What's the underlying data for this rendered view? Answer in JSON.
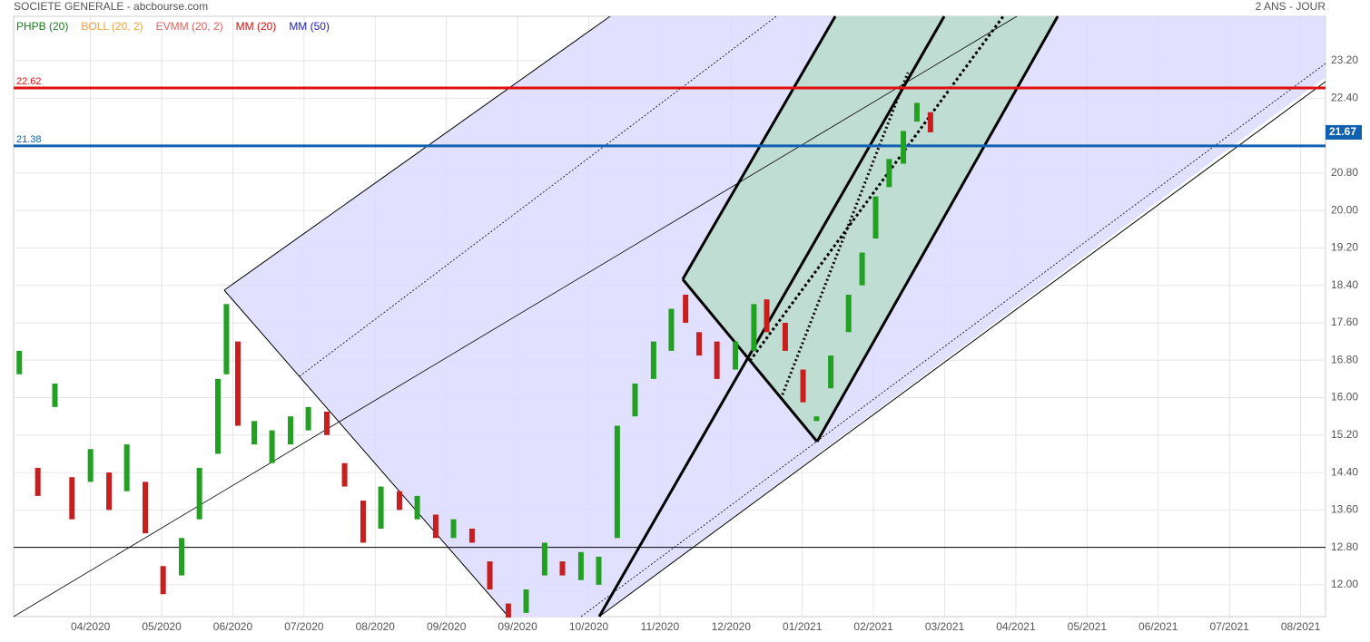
{
  "chart_data": {
    "type": "candlestick",
    "title": "SOCIETE GENERALE - abcbourse.com",
    "subtitle": "2 ANS - JOUR",
    "legend": [
      {
        "name": "PHPB (20)",
        "color": "#1a7f1a"
      },
      {
        "name": "BOLL (20, 2)",
        "color": "#f0a040"
      },
      {
        "name": "EVMM (20, 2)",
        "color": "#e06060"
      },
      {
        "name": "MM (20)",
        "color": "#d01010"
      },
      {
        "name": "MM (50)",
        "color": "#2020c0"
      }
    ],
    "xlim": [
      -0.08,
      18.35
    ],
    "xticks": [
      {
        "value": 1,
        "label": "04/2020"
      },
      {
        "value": 2,
        "label": "05/2020"
      },
      {
        "value": 3,
        "label": "06/2020"
      },
      {
        "value": 4,
        "label": "07/2020"
      },
      {
        "value": 5,
        "label": "08/2020"
      },
      {
        "value": 6,
        "label": "09/2020"
      },
      {
        "value": 7,
        "label": "09/2020"
      },
      {
        "value": 8,
        "label": "10/2020"
      },
      {
        "value": 9,
        "label": "11/2020"
      },
      {
        "value": 10,
        "label": "12/2020"
      },
      {
        "value": 11,
        "label": "01/2021"
      },
      {
        "value": 12,
        "label": "02/2021"
      },
      {
        "value": 13,
        "label": "03/2021"
      },
      {
        "value": 14,
        "label": "04/2021"
      },
      {
        "value": 15,
        "label": "05/2021"
      },
      {
        "value": 16,
        "label": "06/2021"
      },
      {
        "value": 17,
        "label": "07/2021"
      },
      {
        "value": 18,
        "label": "08/2021"
      }
    ],
    "ylim": [
      11.32,
      24.15
    ],
    "yticks": [
      {
        "value": 12,
        "label": "12.00"
      },
      {
        "value": 12.8,
        "label": "12.80"
      },
      {
        "value": 13.6,
        "label": "13.60"
      },
      {
        "value": 14.4,
        "label": "14.40"
      },
      {
        "value": 15.2,
        "label": "15.20"
      },
      {
        "value": 16,
        "label": "16.00"
      },
      {
        "value": 16.8,
        "label": "16.80"
      },
      {
        "value": 17.6,
        "label": "17.60"
      },
      {
        "value": 18.4,
        "label": "18.40"
      },
      {
        "value": 19.2,
        "label": "19.20"
      },
      {
        "value": 20,
        "label": "20.00"
      },
      {
        "value": 20.8,
        "label": "20.80"
      },
      {
        "value": 22.4,
        "label": "22.40"
      },
      {
        "value": 23.2,
        "label": "23.20"
      }
    ],
    "grid": true,
    "up_color": "#22a022",
    "down_color": "#c81e1e",
    "x": [
      0,
      0.26,
      0.5,
      0.74,
      1.0,
      1.26,
      1.51,
      1.77,
      2.02,
      2.28,
      2.53,
      2.79,
      2.91,
      3.07,
      3.3,
      3.55,
      3.81,
      4.06,
      4.32,
      4.57,
      4.83,
      5.08,
      5.34,
      5.59,
      5.85,
      6.1,
      6.36,
      6.61,
      6.87,
      7.12,
      7.38,
      7.63,
      7.89,
      8.14,
      8.4,
      8.65,
      8.91,
      9.16,
      9.36,
      9.55,
      9.8,
      10.06,
      10.32,
      10.5,
      10.76,
      11.01,
      11.2,
      11.4,
      11.65,
      11.84,
      12.03,
      12.22,
      12.42,
      12.61,
      12.8
    ],
    "open": [
      16.5,
      14.5,
      15.8,
      14.3,
      14.2,
      14.4,
      14.0,
      14.2,
      12.4,
      12.2,
      13.4,
      14.8,
      16.5,
      17.2,
      15.0,
      14.6,
      15.0,
      15.3,
      15.7,
      14.6,
      13.8,
      13.2,
      14.0,
      13.4,
      13.5,
      13.0,
      13.2,
      12.5,
      11.6,
      11.4,
      12.2,
      12.5,
      12.1,
      12.0,
      13.0,
      15.6,
      16.4,
      17.0,
      18.2,
      17.4,
      17.2,
      16.6,
      17.0,
      18.1,
      17.6,
      16.6,
      15.5,
      16.2,
      17.4,
      18.4,
      19.4,
      20.5,
      21.0,
      21.9,
      22.1
    ],
    "close": [
      17.0,
      13.9,
      16.3,
      13.4,
      14.9,
      13.6,
      15.0,
      13.1,
      11.8,
      13.0,
      14.5,
      16.4,
      18.0,
      15.4,
      15.5,
      15.3,
      15.6,
      15.8,
      15.2,
      14.1,
      12.9,
      14.1,
      13.6,
      13.9,
      13.0,
      13.4,
      12.9,
      11.9,
      11.3,
      11.9,
      12.9,
      12.2,
      12.7,
      12.6,
      15.4,
      16.3,
      17.2,
      17.9,
      17.6,
      16.9,
      16.4,
      17.2,
      18.0,
      17.4,
      17.0,
      15.9,
      15.6,
      16.9,
      18.2,
      19.1,
      20.3,
      21.1,
      21.7,
      22.3,
      21.67
    ],
    "levels": [
      {
        "value": 22.62,
        "color": "#e01010"
      },
      {
        "value": 21.38,
        "color": "#1060b0"
      },
      {
        "value": 12.8,
        "color": "#000000"
      }
    ],
    "last_price": 21.67
  }
}
